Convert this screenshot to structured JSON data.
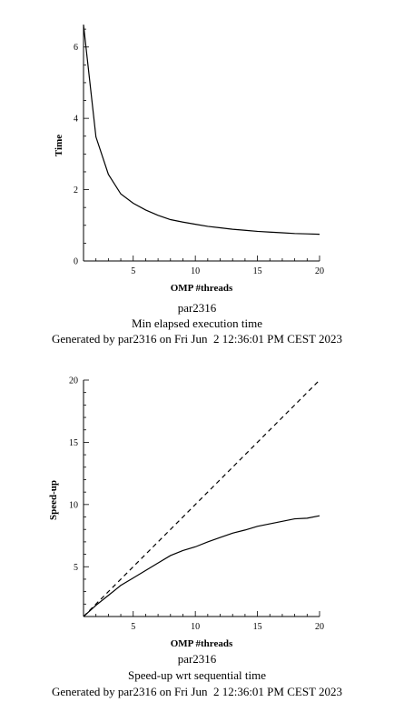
{
  "chart_data": [
    {
      "type": "line",
      "xlabel": "OMP #threads",
      "ylabel": "Time",
      "xlim": [
        1,
        20
      ],
      "ylim": [
        0,
        6.63
      ],
      "xticks": [
        5,
        10,
        15,
        20
      ],
      "yticks": [
        0,
        2,
        4,
        6
      ],
      "grid": false,
      "caption": [
        "par2316",
        "Min elapsed execution time",
        "Generated by par2316 on Fri Jun  2 12:36:01 PM CEST 2023"
      ],
      "series": [
        {
          "style": "solid",
          "x": [
            1,
            2,
            3,
            4,
            5,
            6,
            7,
            8,
            9,
            10,
            11,
            12,
            13,
            14,
            15,
            16,
            17,
            18,
            19,
            20
          ],
          "values": [
            6.62,
            3.48,
            2.43,
            1.88,
            1.62,
            1.43,
            1.28,
            1.16,
            1.09,
            1.03,
            0.97,
            0.93,
            0.89,
            0.86,
            0.83,
            0.81,
            0.79,
            0.77,
            0.76,
            0.75
          ]
        }
      ]
    },
    {
      "type": "line",
      "xlabel": "OMP #threads",
      "ylabel": "Speed-up",
      "xlim": [
        1,
        20
      ],
      "ylim": [
        1,
        20
      ],
      "xticks": [
        5,
        10,
        15,
        20
      ],
      "yticks": [
        5,
        10,
        15,
        20
      ],
      "grid": false,
      "caption": [
        "par2316",
        "Speed-up wrt sequential time",
        "Generated by par2316 on Fri Jun  2 12:36:01 PM CEST 2023"
      ],
      "series": [
        {
          "style": "solid",
          "x": [
            1,
            2,
            3,
            4,
            5,
            6,
            7,
            8,
            9,
            10,
            11,
            12,
            13,
            14,
            15,
            16,
            17,
            18,
            19,
            20
          ],
          "values": [
            1.0,
            1.9,
            2.7,
            3.5,
            4.1,
            4.7,
            5.3,
            5.9,
            6.3,
            6.6,
            7.0,
            7.35,
            7.7,
            7.95,
            8.25,
            8.45,
            8.65,
            8.85,
            8.9,
            9.1
          ]
        },
        {
          "style": "dashed",
          "x": [
            1,
            20
          ],
          "values": [
            1,
            20
          ]
        }
      ]
    }
  ]
}
